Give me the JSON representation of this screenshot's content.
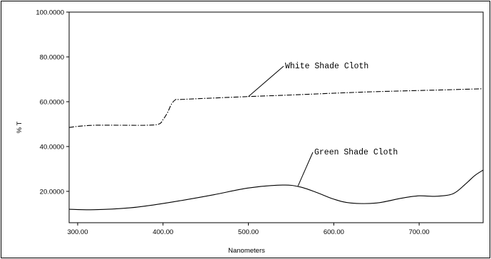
{
  "chart_data": {
    "type": "line",
    "xlabel": "Nanometers",
    "ylabel": "% T",
    "xlim": [
      290,
      775
    ],
    "ylim": [
      6,
      100
    ],
    "x_ticks": [
      300,
      400,
      500,
      600,
      700
    ],
    "x_tick_labels": [
      "300.00",
      "400.00",
      "500.00",
      "600.00",
      "700.00"
    ],
    "y_ticks": [
      20,
      40,
      60,
      80,
      100
    ],
    "y_tick_labels": [
      "20.0000",
      "40.0000",
      "60.0000",
      "80.0000",
      "100.0000"
    ],
    "grid": false,
    "series": [
      {
        "name": "White Shade Cloth",
        "style": "dash-dot",
        "color": "#000000",
        "x": [
          290,
          300,
          320,
          350,
          380,
          395,
          400,
          405,
          410,
          415,
          420,
          450,
          500,
          550,
          600,
          650,
          700,
          750,
          775
        ],
        "y": [
          48.5,
          49,
          49.5,
          49.5,
          49.5,
          50,
          52,
          55,
          59,
          61,
          61,
          61.5,
          62.3,
          63,
          63.8,
          64.5,
          65,
          65.5,
          65.8
        ]
      },
      {
        "name": "Green Shade Cloth",
        "style": "solid",
        "color": "#000000",
        "x": [
          290,
          320,
          360,
          390,
          420,
          460,
          500,
          540,
          560,
          580,
          600,
          620,
          650,
          680,
          700,
          720,
          740,
          755,
          765,
          775
        ],
        "y": [
          12,
          11.8,
          12.6,
          14,
          15.8,
          18.5,
          21.5,
          22.8,
          22,
          19.5,
          16.5,
          14.8,
          14.8,
          17,
          18,
          17.8,
          19,
          23.5,
          27,
          29.5
        ]
      }
    ],
    "annotations": [
      {
        "text": "White Shade Cloth",
        "series": 0,
        "x": 500,
        "y": 62.3
      },
      {
        "text": "Green Shade Cloth",
        "series": 1,
        "x": 558,
        "y": 22.3
      }
    ]
  }
}
